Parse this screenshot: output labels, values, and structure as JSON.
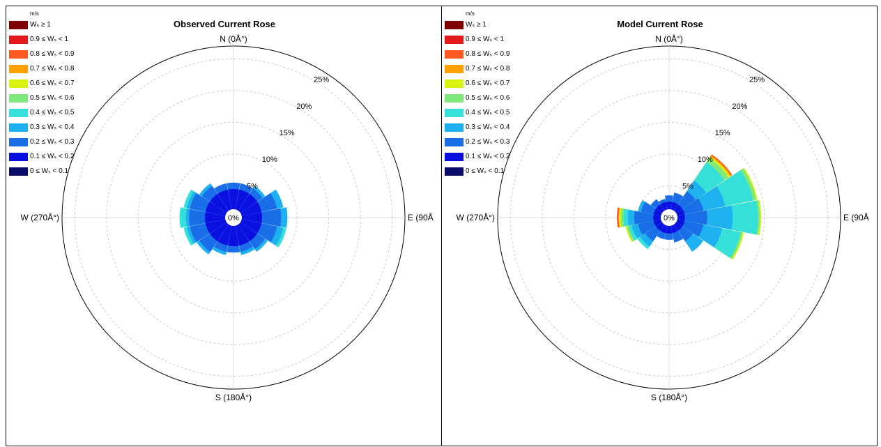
{
  "legend": {
    "unit": "m/s",
    "bins": [
      {
        "label": "Wₛ ≥ 1",
        "color": "#7f0000"
      },
      {
        "label": "0.9 ≤ Wₛ < 1",
        "color": "#e31a1c"
      },
      {
        "label": "0.8 ≤ Wₛ < 0.9",
        "color": "#ff5a1f"
      },
      {
        "label": "0.7 ≤ Wₛ < 0.8",
        "color": "#ff9f00"
      },
      {
        "label": "0.6 ≤ Wₛ < 0.7",
        "color": "#d9f20f"
      },
      {
        "label": "0.5 ≤ Wₛ < 0.6",
        "color": "#7fe87a"
      },
      {
        "label": "0.4 ≤ Wₛ < 0.5",
        "color": "#35e0d8"
      },
      {
        "label": "0.3 ≤ Wₛ < 0.4",
        "color": "#1fb0f0"
      },
      {
        "label": "0.2 ≤ Wₛ < 0.3",
        "color": "#1a6ee8"
      },
      {
        "label": "0.1 ≤ Wₛ < 0.2",
        "color": "#0a10e0"
      },
      {
        "label": "0 ≤ Wₛ < 0.1",
        "color": "#0a0a6a"
      }
    ]
  },
  "chart_data": [
    {
      "type": "windrose",
      "title": "Observed Current Rose",
      "direction_labels": {
        "n": "N (0Å°)",
        "e": "E (90Å",
        "s": "S (180Å°)",
        "w": "W (270Å°)"
      },
      "center_label": "0%",
      "radial_ticks": [
        "5%",
        "10%",
        "15%",
        "20%",
        "25%"
      ],
      "radial_tick_values": [
        5,
        10,
        15,
        20,
        25
      ],
      "rmax": 27,
      "sector_count": 16,
      "directions_deg": [
        0,
        22.5,
        45,
        67.5,
        90,
        112.5,
        135,
        157.5,
        180,
        202.5,
        225,
        247.5,
        270,
        292.5,
        315,
        337.5
      ],
      "speed_bins_order": [
        "0-0.1",
        "0.1-0.2",
        "0.2-0.3",
        "0.3-0.4",
        "0.4-0.5"
      ],
      "cumulative_percent": [
        [
          1.0,
          4.5,
          5.5,
          5.5,
          5.5
        ],
        [
          1.0,
          4.5,
          5.5,
          5.5,
          5.5
        ],
        [
          1.0,
          4.5,
          5.5,
          6.0,
          6.0
        ],
        [
          1.0,
          4.5,
          7.0,
          8.0,
          8.0
        ],
        [
          1.0,
          4.5,
          7.5,
          8.5,
          8.5
        ],
        [
          1.0,
          4.5,
          7.0,
          8.0,
          8.5
        ],
        [
          1.0,
          4.5,
          6.0,
          6.5,
          6.5
        ],
        [
          1.0,
          4.5,
          5.5,
          6.0,
          6.0
        ],
        [
          1.0,
          4.5,
          5.5,
          5.5,
          5.5
        ],
        [
          1.0,
          4.5,
          5.5,
          6.0,
          6.0
        ],
        [
          1.0,
          4.5,
          6.5,
          7.0,
          7.0
        ],
        [
          1.0,
          4.5,
          7.0,
          7.5,
          8.0
        ],
        [
          1.0,
          4.5,
          7.0,
          7.5,
          8.5
        ],
        [
          1.0,
          4.5,
          7.0,
          7.5,
          8.0
        ],
        [
          1.0,
          4.5,
          6.0,
          6.5,
          6.5
        ],
        [
          1.0,
          4.5,
          5.5,
          5.5,
          5.5
        ]
      ]
    },
    {
      "type": "windrose",
      "title": "Model Current Rose",
      "direction_labels": {
        "n": "N (0Å°)",
        "e": "E (90Å",
        "s": "S (180Å°)",
        "w": "W (270Å°)"
      },
      "center_label": "0%",
      "radial_ticks": [
        "5%",
        "10%",
        "15%",
        "20%",
        "25%"
      ],
      "radial_tick_values": [
        5,
        10,
        15,
        20,
        25
      ],
      "rmax": 27,
      "sector_count": 16,
      "directions_deg": [
        0,
        22.5,
        45,
        67.5,
        90,
        112.5,
        135,
        157.5,
        180,
        202.5,
        225,
        247.5,
        270,
        292.5,
        315,
        337.5
      ],
      "speed_bins_order": [
        "0-0.1",
        "0.1-0.2",
        "0.2-0.3",
        "0.3-0.4",
        "0.4-0.5",
        "0.5-0.6",
        "0.6-0.7",
        "0.7-0.8",
        "0.8-0.9",
        "0.9-1"
      ],
      "cumulative_percent": [
        [
          1.0,
          2.5,
          3.5,
          3.5,
          3.5,
          3.5,
          3.5,
          3.5,
          3.5,
          3.5
        ],
        [
          1.0,
          2.5,
          4.0,
          4.0,
          4.0,
          4.0,
          4.0,
          4.0,
          4.0,
          4.0
        ],
        [
          1.0,
          2.5,
          5.0,
          7.0,
          10.5,
          11.3,
          11.6,
          11.8,
          12.0,
          12.0
        ],
        [
          1.0,
          2.5,
          5.5,
          9.0,
          13.5,
          14.0,
          14.2,
          14.2,
          14.2,
          14.2
        ],
        [
          1.0,
          2.5,
          6.0,
          10.0,
          14.0,
          14.3,
          14.5,
          14.5,
          14.5,
          14.5
        ],
        [
          1.0,
          2.5,
          5.5,
          8.5,
          11.5,
          11.8,
          12.0,
          12.0,
          12.0,
          12.0
        ],
        [
          1.0,
          2.5,
          4.5,
          6.5,
          6.5,
          6.5,
          6.5,
          6.5,
          6.5,
          6.5
        ],
        [
          1.0,
          2.5,
          4.0,
          4.0,
          4.0,
          4.0,
          4.0,
          4.0,
          4.0,
          4.0
        ],
        [
          1.0,
          2.5,
          3.5,
          3.5,
          3.5,
          3.5,
          3.5,
          3.5,
          3.5,
          3.5
        ],
        [
          1.0,
          2.5,
          3.5,
          3.5,
          3.5,
          3.5,
          3.5,
          3.5,
          3.5,
          3.5
        ],
        [
          1.0,
          2.5,
          4.5,
          5.5,
          6.0,
          6.0,
          6.0,
          6.0,
          6.0,
          6.0
        ],
        [
          1.0,
          2.5,
          5.0,
          6.0,
          6.5,
          6.8,
          7.0,
          7.0,
          7.0,
          7.0
        ],
        [
          1.0,
          2.5,
          5.5,
          6.5,
          7.2,
          7.6,
          7.9,
          8.0,
          8.1,
          8.2
        ],
        [
          1.0,
          2.5,
          4.5,
          5.0,
          5.0,
          5.0,
          5.0,
          5.0,
          5.0,
          5.0
        ],
        [
          1.0,
          2.5,
          3.5,
          3.5,
          3.5,
          3.5,
          3.5,
          3.5,
          3.5,
          3.5
        ],
        [
          1.0,
          2.5,
          3.0,
          3.0,
          3.0,
          3.0,
          3.0,
          3.0,
          3.0,
          3.0
        ]
      ]
    }
  ]
}
